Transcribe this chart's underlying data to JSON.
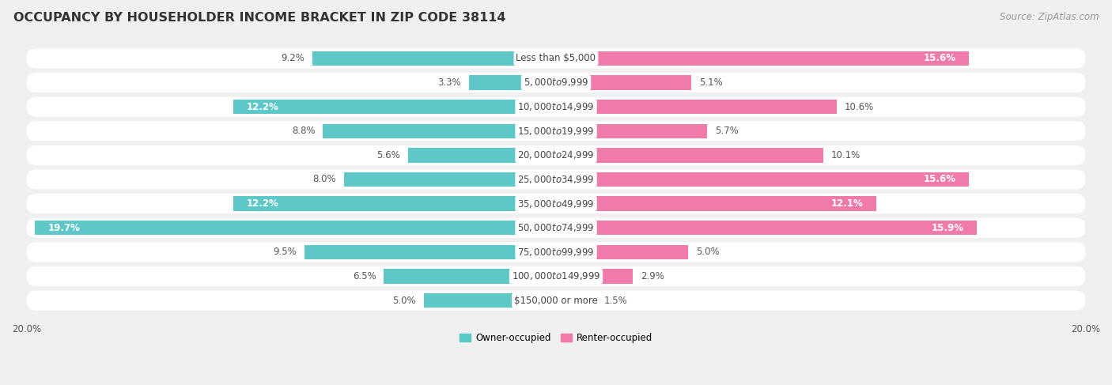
{
  "title": "OCCUPANCY BY HOUSEHOLDER INCOME BRACKET IN ZIP CODE 38114",
  "source": "Source: ZipAtlas.com",
  "categories": [
    "Less than $5,000",
    "$5,000 to $9,999",
    "$10,000 to $14,999",
    "$15,000 to $19,999",
    "$20,000 to $24,999",
    "$25,000 to $34,999",
    "$35,000 to $49,999",
    "$50,000 to $74,999",
    "$75,000 to $99,999",
    "$100,000 to $149,999",
    "$150,000 or more"
  ],
  "owner_values": [
    9.2,
    3.3,
    12.2,
    8.8,
    5.6,
    8.0,
    12.2,
    19.7,
    9.5,
    6.5,
    5.0
  ],
  "renter_values": [
    15.6,
    5.1,
    10.6,
    5.7,
    10.1,
    15.6,
    12.1,
    15.9,
    5.0,
    2.9,
    1.5
  ],
  "owner_color": "#5ec8c8",
  "renter_color": "#f07aaa",
  "owner_label": "Owner-occupied",
  "renter_label": "Renter-occupied",
  "background_color": "#f0f0f0",
  "row_color": "#ffffff",
  "axis_max": 20.0,
  "title_fontsize": 11.5,
  "label_fontsize": 8.5,
  "value_fontsize": 8.5,
  "tick_fontsize": 8.5,
  "source_fontsize": 8.5
}
